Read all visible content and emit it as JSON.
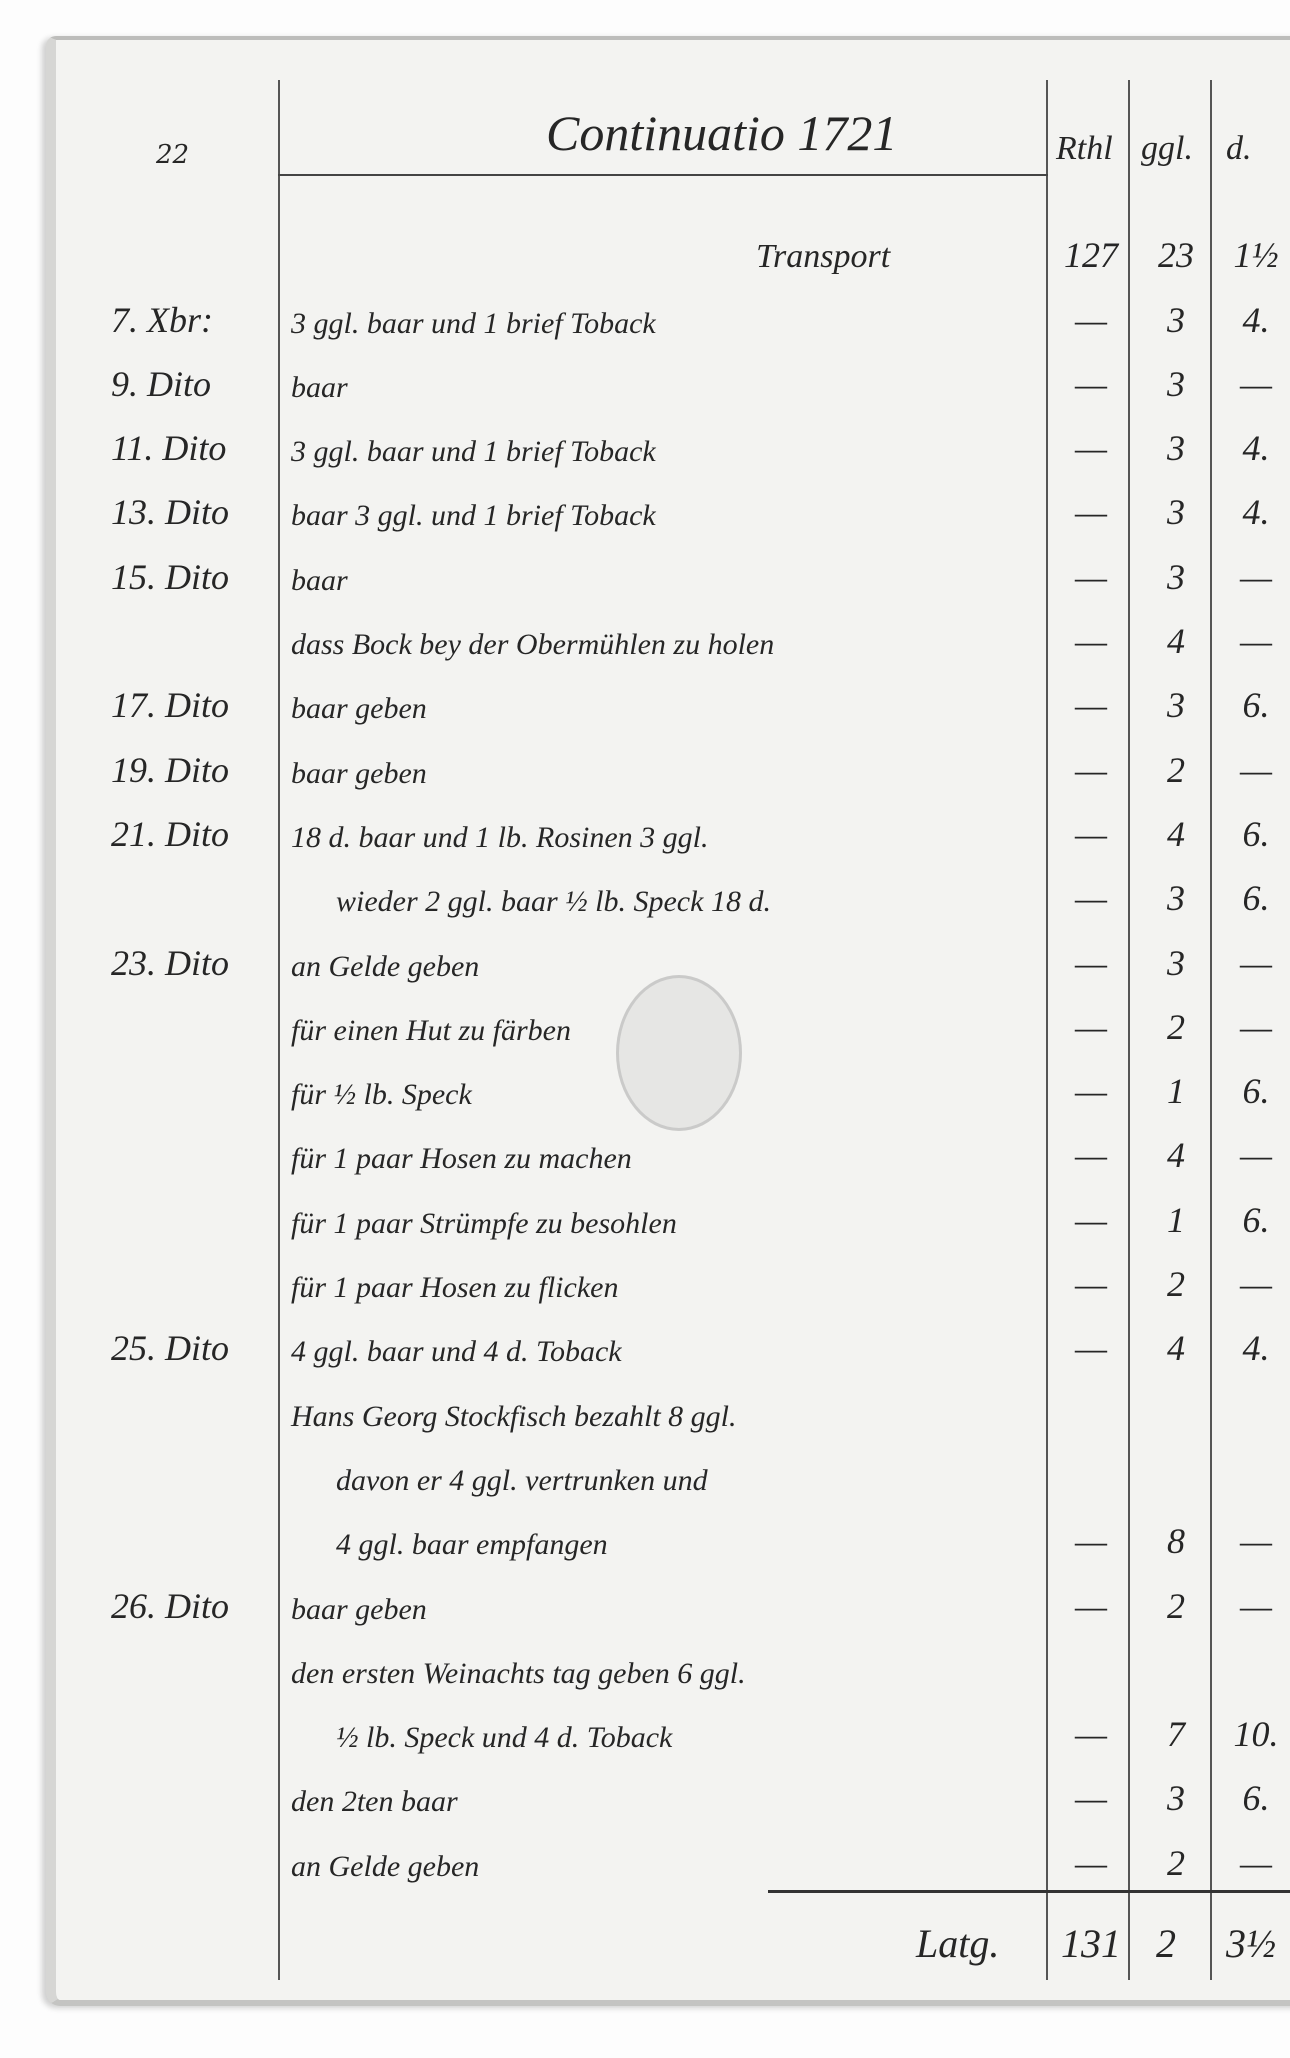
{
  "header": {
    "page_number": "22",
    "title": "Continuatio 1721",
    "columns": [
      "Rthl",
      "ggl.",
      "d."
    ]
  },
  "transport": {
    "label": "Transport",
    "rthl": "127",
    "ggl": "23",
    "d": "1½"
  },
  "rows": [
    {
      "date": "7. Xbr:",
      "desc": "3 ggl. baar und 1 brief Toback",
      "rthl": "—",
      "ggl": "3",
      "d": "4."
    },
    {
      "date": "9. Dito",
      "desc": "baar",
      "rthl": "—",
      "ggl": "3",
      "d": "—"
    },
    {
      "date": "11. Dito",
      "desc": "3 ggl. baar und 1 brief Toback",
      "rthl": "—",
      "ggl": "3",
      "d": "4."
    },
    {
      "date": "13. Dito",
      "desc": "baar 3 ggl. und 1 brief Toback",
      "rthl": "—",
      "ggl": "3",
      "d": "4."
    },
    {
      "date": "15. Dito",
      "desc": "baar",
      "rthl": "—",
      "ggl": "3",
      "d": "—"
    },
    {
      "date": "",
      "desc": "dass Bock bey der Obermühlen zu holen",
      "rthl": "—",
      "ggl": "4",
      "d": "—"
    },
    {
      "date": "17. Dito",
      "desc": "baar geben",
      "rthl": "—",
      "ggl": "3",
      "d": "6."
    },
    {
      "date": "19. Dito",
      "desc": "baar geben",
      "rthl": "—",
      "ggl": "2",
      "d": "—"
    },
    {
      "date": "21. Dito",
      "desc": "18 d. baar und 1 lb. Rosinen 3 ggl.",
      "rthl": "—",
      "ggl": "4",
      "d": "6."
    },
    {
      "date": "",
      "desc": "wieder 2 ggl. baar ½ lb. Speck 18 d.",
      "rthl": "—",
      "ggl": "3",
      "d": "6.",
      "indent": true
    },
    {
      "date": "23. Dito",
      "desc": "an Gelde geben",
      "rthl": "—",
      "ggl": "3",
      "d": "—"
    },
    {
      "date": "",
      "desc": "für einen Hut zu färben",
      "rthl": "—",
      "ggl": "2",
      "d": "—"
    },
    {
      "date": "",
      "desc": "für ½ lb. Speck",
      "rthl": "—",
      "ggl": "1",
      "d": "6."
    },
    {
      "date": "",
      "desc": "für 1 paar Hosen zu machen",
      "rthl": "—",
      "ggl": "4",
      "d": "—"
    },
    {
      "date": "",
      "desc": "für 1 paar Strümpfe zu besohlen",
      "rthl": "—",
      "ggl": "1",
      "d": "6."
    },
    {
      "date": "",
      "desc": "für 1 paar Hosen zu flicken",
      "rthl": "—",
      "ggl": "2",
      "d": "—"
    },
    {
      "date": "25. Dito",
      "desc": "4 ggl. baar und 4 d. Toback",
      "rthl": "—",
      "ggl": "4",
      "d": "4."
    },
    {
      "date": "",
      "desc": "Hans Georg Stockfisch bezahlt 8 ggl.",
      "rthl": "",
      "ggl": "",
      "d": ""
    },
    {
      "date": "",
      "desc": "davon er 4 ggl. vertrunken und",
      "rthl": "",
      "ggl": "",
      "d": "",
      "indent": true
    },
    {
      "date": "",
      "desc": "4 ggl. baar empfangen",
      "rthl": "—",
      "ggl": "8",
      "d": "—",
      "indent": true
    },
    {
      "date": "26. Dito",
      "desc": "baar geben",
      "rthl": "—",
      "ggl": "2",
      "d": "—"
    },
    {
      "date": "",
      "desc": "den ersten Weinachts tag geben 6 ggl.",
      "rthl": "",
      "ggl": "",
      "d": ""
    },
    {
      "date": "",
      "desc": "½ lb. Speck und 4 d. Toback",
      "rthl": "—",
      "ggl": "7",
      "d": "10.",
      "indent": true
    },
    {
      "date": "",
      "desc": "den 2ten baar",
      "rthl": "—",
      "ggl": "3",
      "d": "6."
    },
    {
      "date": "",
      "desc": "an Gelde geben",
      "rthl": "—",
      "ggl": "2",
      "d": "—"
    }
  ],
  "total": {
    "label": "Latg.",
    "rthl": "131",
    "ggl": "2",
    "d": "3½"
  }
}
